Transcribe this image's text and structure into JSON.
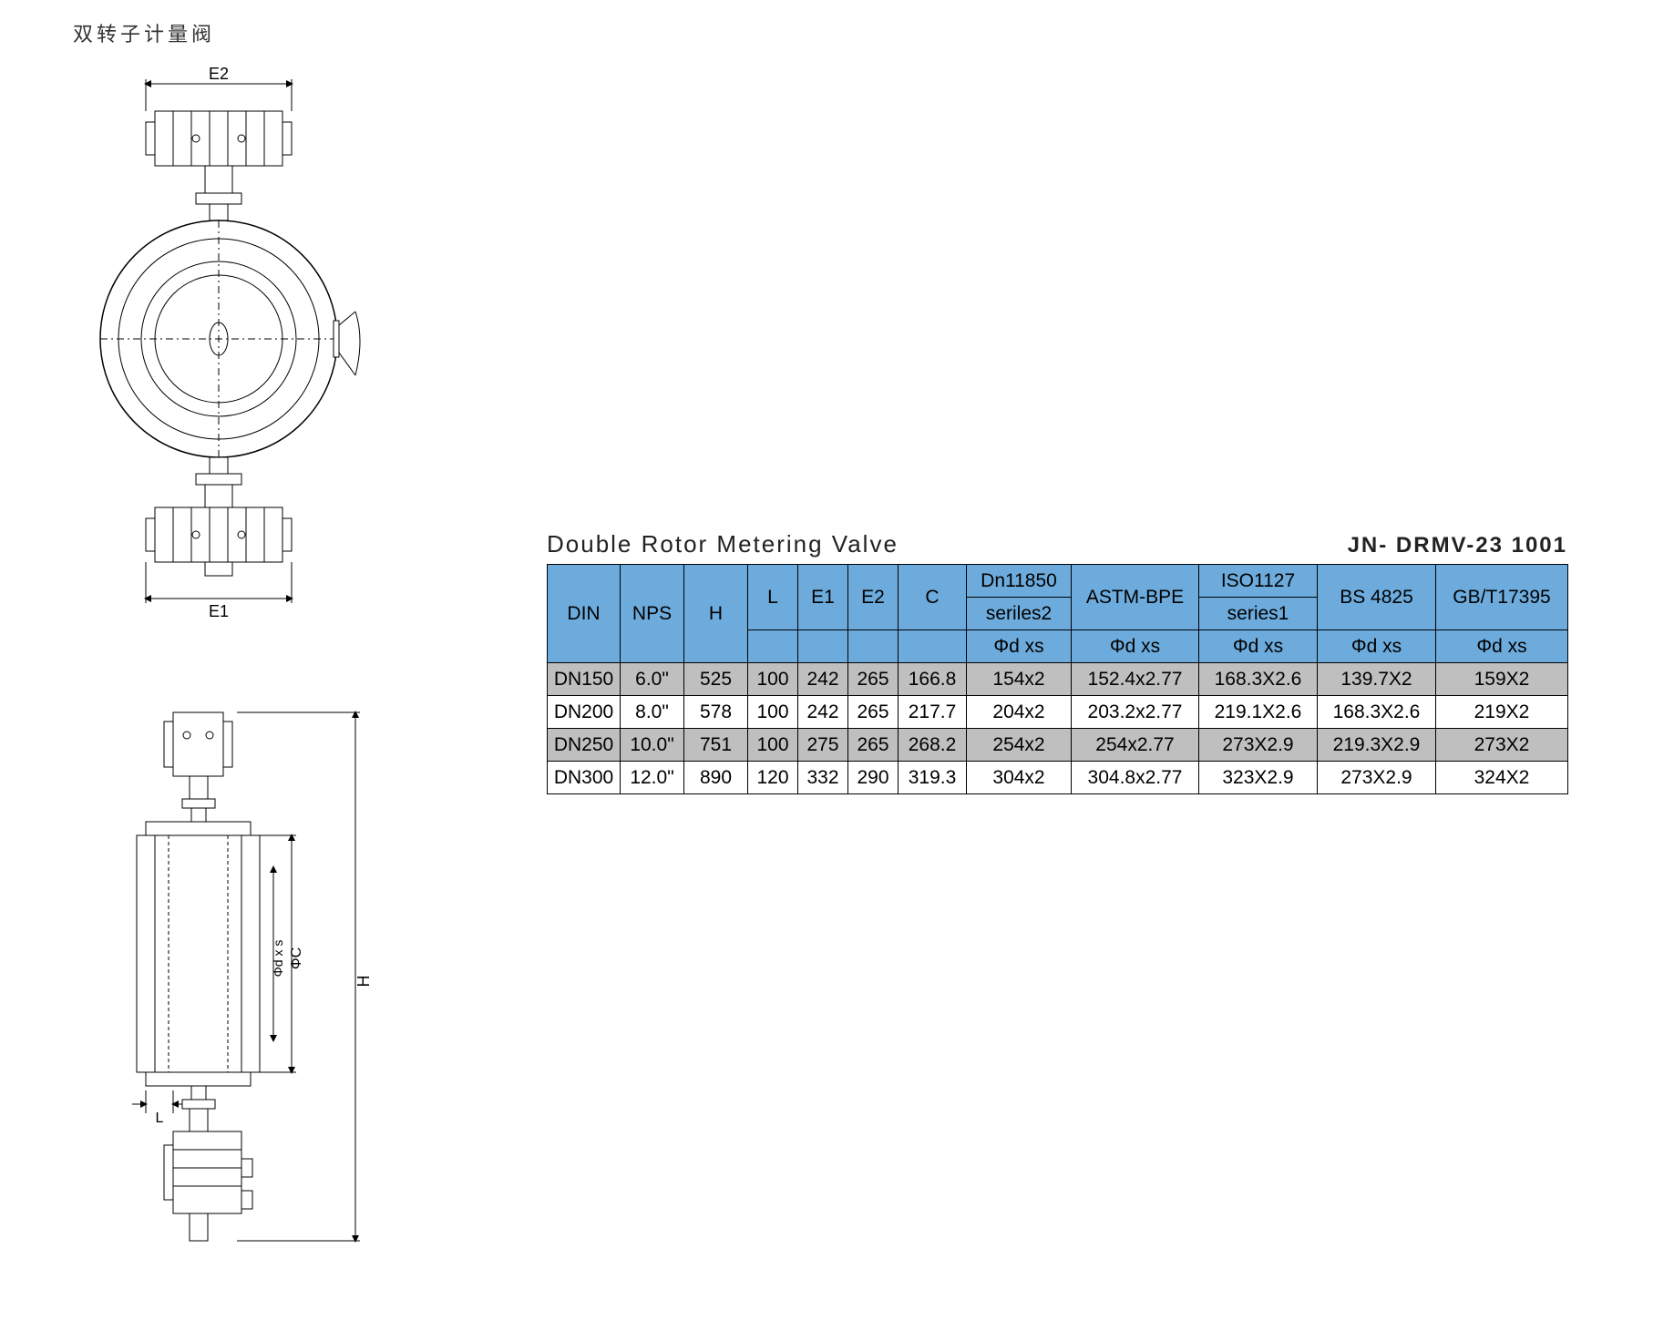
{
  "title_cn": "双转子计量阀",
  "table": {
    "title": "Double Rotor Metering Valve",
    "model": "JN- DRMV-23 1001",
    "headers": {
      "din": "DIN",
      "nps": "NPS",
      "h": "H",
      "l": "L",
      "e1": "E1",
      "e2": "E2",
      "c": "C",
      "dn11850_top": "Dn11850",
      "dn11850_sub": "seriles2",
      "astm": "ASTM-BPE",
      "iso_top": "ISO1127",
      "iso_sub": "series1",
      "bs": "BS 4825",
      "gb": "GB/T17395",
      "phi": "Φd xs"
    },
    "rows": [
      {
        "din": "DN150",
        "nps": "6.0\"",
        "h": "525",
        "l": "100",
        "e1": "242",
        "e2": "265",
        "c": "166.8",
        "dn": "154x2",
        "astm": "152.4x2.77",
        "iso": "168.3X2.6",
        "bs": "139.7X2",
        "gb": "159X2",
        "shade": true
      },
      {
        "din": "DN200",
        "nps": "8.0\"",
        "h": "578",
        "l": "100",
        "e1": "242",
        "e2": "265",
        "c": "217.7",
        "dn": "204x2",
        "astm": "203.2x2.77",
        "iso": "219.1X2.6",
        "bs": "168.3X2.6",
        "gb": "219X2",
        "shade": false
      },
      {
        "din": "DN250",
        "nps": "10.0\"",
        "h": "751",
        "l": "100",
        "e1": "275",
        "e2": "265",
        "c": "268.2",
        "dn": "254x2",
        "astm": "254x2.77",
        "iso": "273X2.9",
        "bs": "219.3X2.9",
        "gb": "273X2",
        "shade": true
      },
      {
        "din": "DN300",
        "nps": "12.0\"",
        "h": "890",
        "l": "120",
        "e1": "332",
        "e2": "290",
        "c": "319.3",
        "dn": "304x2",
        "astm": "304.8x2.77",
        "iso": "323X2.9",
        "bs": "273X2.9",
        "gb": "324X2",
        "shade": false
      }
    ]
  },
  "diagram": {
    "labels": {
      "e1": "E1",
      "e2": "E2",
      "h": "H",
      "l": "L",
      "phi_c": "ΦC",
      "phi_dxs": "Φd x s"
    },
    "stroke": "#000000",
    "fill": "#ffffff"
  }
}
